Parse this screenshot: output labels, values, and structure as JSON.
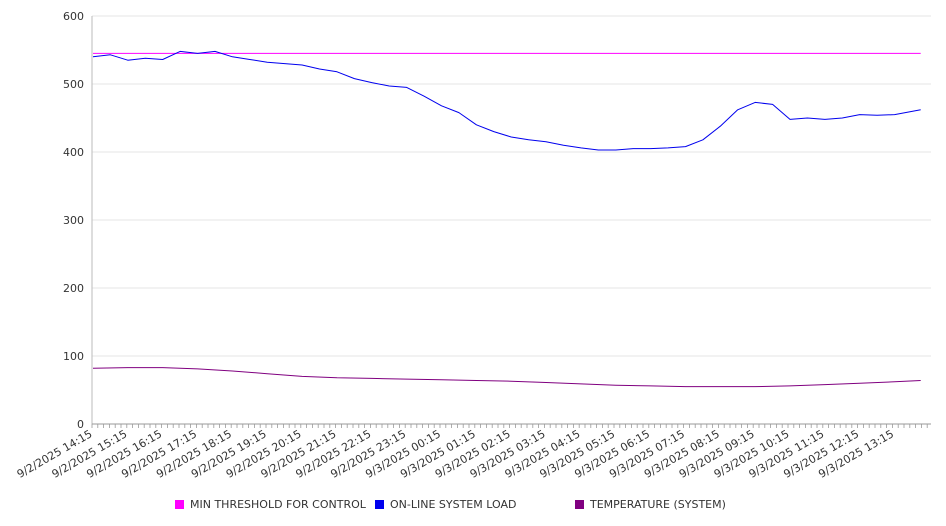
{
  "chart_data": {
    "type": "line",
    "y_ticks": [
      "0",
      "100",
      "200",
      "300",
      "400",
      "500",
      "600"
    ],
    "ylim": [
      0,
      600
    ],
    "grid": true,
    "legend_position": "bottom",
    "x_tick_labels": [
      "9/2/2025 14:15",
      "9/2/2025 15:15",
      "9/2/2025 16:15",
      "9/2/2025 17:15",
      "9/2/2025 18:15",
      "9/2/2025 19:15",
      "9/2/2025 20:15",
      "9/2/2025 21:15",
      "9/2/2025 22:15",
      "9/2/2025 23:15",
      "9/3/2025 00:15",
      "9/3/2025 01:15",
      "9/3/2025 02:15",
      "9/3/2025 03:15",
      "9/3/2025 04:15",
      "9/3/2025 05:15",
      "9/3/2025 06:15",
      "9/3/2025 07:15",
      "9/3/2025 08:15",
      "9/3/2025 09:15",
      "9/3/2025 10:15",
      "9/3/2025 11:15",
      "9/3/2025 12:15",
      "9/3/2025 13:15"
    ],
    "series": [
      {
        "name": "MIN THRESHOLD FOR CONTROL",
        "color": "#ff00ff",
        "x": [
          "9/2/2025 14:15",
          "9/3/2025 14:00"
        ],
        "values": [
          545,
          545
        ]
      },
      {
        "name": "ON-LINE SYSTEM LOAD",
        "color": "#0000ee",
        "x": [
          "9/2/2025 14:15",
          "9/2/2025 14:45",
          "9/2/2025 15:15",
          "9/2/2025 15:45",
          "9/2/2025 16:15",
          "9/2/2025 16:45",
          "9/2/2025 17:15",
          "9/2/2025 17:45",
          "9/2/2025 18:15",
          "9/2/2025 18:45",
          "9/2/2025 19:15",
          "9/2/2025 19:45",
          "9/2/2025 20:15",
          "9/2/2025 20:45",
          "9/2/2025 21:15",
          "9/2/2025 21:45",
          "9/2/2025 22:15",
          "9/2/2025 22:45",
          "9/2/2025 23:15",
          "9/2/2025 23:45",
          "9/3/2025 00:15",
          "9/3/2025 00:45",
          "9/3/2025 01:15",
          "9/3/2025 01:45",
          "9/3/2025 02:15",
          "9/3/2025 02:45",
          "9/3/2025 03:15",
          "9/3/2025 03:45",
          "9/3/2025 04:15",
          "9/3/2025 04:45",
          "9/3/2025 05:15",
          "9/3/2025 05:45",
          "9/3/2025 06:15",
          "9/3/2025 06:45",
          "9/3/2025 07:15",
          "9/3/2025 07:45",
          "9/3/2025 08:15",
          "9/3/2025 08:45",
          "9/3/2025 09:15",
          "9/3/2025 09:45",
          "9/3/2025 10:15",
          "9/3/2025 10:45",
          "9/3/2025 11:15",
          "9/3/2025 11:45",
          "9/3/2025 12:15",
          "9/3/2025 12:45",
          "9/3/2025 13:15",
          "9/3/2025 14:00"
        ],
        "values": [
          540,
          543,
          535,
          538,
          536,
          548,
          545,
          548,
          540,
          536,
          532,
          530,
          528,
          522,
          518,
          508,
          502,
          497,
          495,
          482,
          468,
          458,
          440,
          430,
          422,
          418,
          415,
          410,
          406,
          403,
          403,
          405,
          405,
          406,
          408,
          418,
          438,
          462,
          473,
          470,
          448,
          450,
          448,
          450,
          455,
          454,
          455,
          462
        ]
      },
      {
        "name": "TEMPERATURE (SYSTEM)",
        "color": "#800080",
        "x": [
          "9/2/2025 14:15",
          "9/2/2025 15:15",
          "9/2/2025 16:15",
          "9/2/2025 17:15",
          "9/2/2025 18:15",
          "9/2/2025 19:15",
          "9/2/2025 20:15",
          "9/2/2025 21:15",
          "9/2/2025 22:15",
          "9/2/2025 23:15",
          "9/3/2025 00:15",
          "9/3/2025 01:15",
          "9/3/2025 02:15",
          "9/3/2025 03:15",
          "9/3/2025 04:15",
          "9/3/2025 05:15",
          "9/3/2025 06:15",
          "9/3/2025 07:15",
          "9/3/2025 08:15",
          "9/3/2025 09:15",
          "9/3/2025 10:15",
          "9/3/2025 11:15",
          "9/3/2025 12:15",
          "9/3/2025 13:15",
          "9/3/2025 14:00"
        ],
        "values": [
          82,
          83,
          83,
          81,
          78,
          74,
          70,
          68,
          67,
          66,
          65,
          64,
          63,
          61,
          59,
          57,
          56,
          55,
          55,
          55,
          56,
          58,
          60,
          62,
          64
        ]
      }
    ]
  }
}
